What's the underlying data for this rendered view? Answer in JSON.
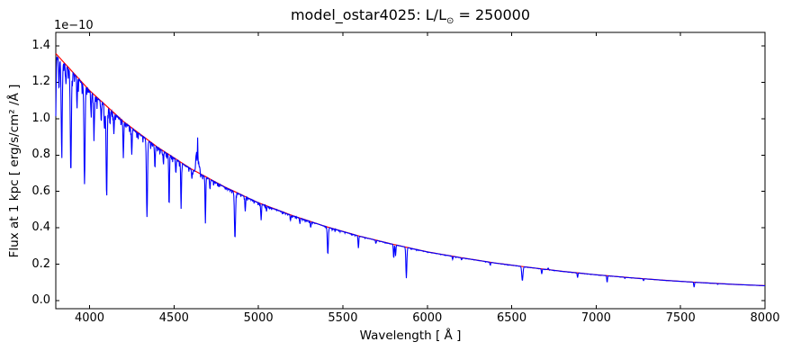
{
  "figure": {
    "background": "#ffffff"
  },
  "chart_data": {
    "type": "line",
    "title": "model_ostar4025: L/L⊙ = 250000",
    "title_parts": {
      "prefix": "model_ostar4025: L/L",
      "sun_symbol": "⊙",
      "suffix": " = 250000"
    },
    "xlabel": "Wavelength [ Å ]",
    "ylabel": "Flux at 1 kpc [ erg/s/cm² /Å ]",
    "y_scale_label": "1e−10",
    "xlim": [
      3800,
      8000
    ],
    "ylim": [
      -0.0445,
      1.4745
    ],
    "x_ticks": [
      "4000",
      "4500",
      "5000",
      "5500",
      "6000",
      "6500",
      "7000",
      "7500",
      "8000"
    ],
    "y_ticks": [
      "0.0",
      "0.2",
      "0.4",
      "0.6",
      "0.8",
      "1.0",
      "1.2",
      "1.4"
    ],
    "grid": false,
    "legend": null,
    "flux_unit_scale": "1e-10 erg/s/cm2/A",
    "series": [
      {
        "name": "continuum_fit",
        "color": "#ff0000",
        "style": "smooth"
      },
      {
        "name": "spectrum",
        "color": "#0000ff",
        "style": "continuum_with_lines"
      }
    ],
    "continuum_points": [
      [
        3800,
        1.358
      ],
      [
        4000,
        1.155
      ],
      [
        4200,
        0.985
      ],
      [
        4400,
        0.845
      ],
      [
        4600,
        0.725
      ],
      [
        4800,
        0.625
      ],
      [
        5000,
        0.538
      ],
      [
        5200,
        0.468
      ],
      [
        5400,
        0.407
      ],
      [
        5600,
        0.354
      ],
      [
        5800,
        0.309
      ],
      [
        6000,
        0.268
      ],
      [
        6200,
        0.236
      ],
      [
        6400,
        0.207
      ],
      [
        6600,
        0.183
      ],
      [
        6800,
        0.161
      ],
      [
        7000,
        0.142
      ],
      [
        7200,
        0.126
      ],
      [
        7400,
        0.112
      ],
      [
        7600,
        0.1
      ],
      [
        7800,
        0.09
      ],
      [
        8000,
        0.082
      ]
    ],
    "absorption_lines": [
      {
        "wavelength": 3798,
        "depth": 0.3,
        "sigma": 4.5
      },
      {
        "wavelength": 3819,
        "depth": 0.13,
        "sigma": 3
      },
      {
        "wavelength": 3835,
        "depth": 0.36,
        "sigma": 4.5
      },
      {
        "wavelength": 3860,
        "depth": 0.08,
        "sigma": 3
      },
      {
        "wavelength": 3889,
        "depth": 0.44,
        "sigma": 4.5
      },
      {
        "wavelength": 3926,
        "depth": 0.1,
        "sigma": 3
      },
      {
        "wavelength": 3970,
        "depth": 0.46,
        "sigma": 4.5
      },
      {
        "wavelength": 4009,
        "depth": 0.1,
        "sigma": 3
      },
      {
        "wavelength": 4026,
        "depth": 0.22,
        "sigma": 3
      },
      {
        "wavelength": 4069,
        "depth": 0.1,
        "sigma": 3
      },
      {
        "wavelength": 4089,
        "depth": 0.13,
        "sigma": 3
      },
      {
        "wavelength": 4101,
        "depth": 0.45,
        "sigma": 4.5
      },
      {
        "wavelength": 4121,
        "depth": 0.08,
        "sigma": 3
      },
      {
        "wavelength": 4144,
        "depth": 0.11,
        "sigma": 3
      },
      {
        "wavelength": 4200,
        "depth": 0.2,
        "sigma": 3
      },
      {
        "wavelength": 4250,
        "depth": 0.15,
        "sigma": 3
      },
      {
        "wavelength": 4340,
        "depth": 0.48,
        "sigma": 4.5
      },
      {
        "wavelength": 4387,
        "depth": 0.15,
        "sigma": 3
      },
      {
        "wavelength": 4437,
        "depth": 0.07,
        "sigma": 3
      },
      {
        "wavelength": 4471,
        "depth": 0.36,
        "sigma": 3
      },
      {
        "wavelength": 4511,
        "depth": 0.1,
        "sigma": 3
      },
      {
        "wavelength": 4542,
        "depth": 0.33,
        "sigma": 3
      },
      {
        "wavelength": 4606,
        "depth": 0.07,
        "sigma": 3
      },
      {
        "wavelength": 4686,
        "depth": 0.36,
        "sigma": 3
      },
      {
        "wavelength": 4713,
        "depth": 0.08,
        "sigma": 3
      },
      {
        "wavelength": 4861,
        "depth": 0.43,
        "sigma": 4.5
      },
      {
        "wavelength": 4922,
        "depth": 0.14,
        "sigma": 3
      },
      {
        "wavelength": 5016,
        "depth": 0.17,
        "sigma": 3
      },
      {
        "wavelength": 5048,
        "depth": 0.05,
        "sigma": 3
      },
      {
        "wavelength": 5190,
        "depth": 0.06,
        "sigma": 3
      },
      {
        "wavelength": 5245,
        "depth": 0.05,
        "sigma": 3
      },
      {
        "wavelength": 5310,
        "depth": 0.07,
        "sigma": 3
      },
      {
        "wavelength": 5411,
        "depth": 0.37,
        "sigma": 4
      },
      {
        "wavelength": 5592,
        "depth": 0.19,
        "sigma": 3
      },
      {
        "wavelength": 5696,
        "depth": 0.05,
        "sigma": 3
      },
      {
        "wavelength": 5801,
        "depth": 0.24,
        "sigma": 3
      },
      {
        "wavelength": 5812,
        "depth": 0.2,
        "sigma": 3
      },
      {
        "wavelength": 5876,
        "depth": 0.57,
        "sigma": 4
      },
      {
        "wavelength": 6150,
        "depth": 0.07,
        "sigma": 3
      },
      {
        "wavelength": 6203,
        "depth": 0.05,
        "sigma": 3
      },
      {
        "wavelength": 6373,
        "depth": 0.07,
        "sigma": 3
      },
      {
        "wavelength": 6563,
        "depth": 0.41,
        "sigma": 5
      },
      {
        "wavelength": 6678,
        "depth": 0.16,
        "sigma": 3
      },
      {
        "wavelength": 6890,
        "depth": 0.17,
        "sigma": 3
      },
      {
        "wavelength": 7065,
        "depth": 0.27,
        "sigma": 3
      },
      {
        "wavelength": 7170,
        "depth": 0.05,
        "sigma": 3
      },
      {
        "wavelength": 7281,
        "depth": 0.09,
        "sigma": 3
      },
      {
        "wavelength": 7580,
        "depth": 0.27,
        "sigma": 3
      },
      {
        "wavelength": 7720,
        "depth": 0.05,
        "sigma": 3
      }
    ],
    "emission_lines": [
      {
        "wavelength": 4630,
        "peak": 0.1,
        "sigma": 4
      },
      {
        "wavelength": 4634,
        "peak": 0.13,
        "sigma": 3
      },
      {
        "wavelength": 4640,
        "peak": 0.27,
        "sigma": 2.2
      },
      {
        "wavelength": 4646,
        "peak": 0.09,
        "sigma": 3
      },
      {
        "wavelength": 4652,
        "peak": 0.06,
        "sigma": 3
      },
      {
        "wavelength": 6716,
        "peak": 0.05,
        "sigma": 4
      }
    ],
    "noise": {
      "amplitude_blue_end": 0.035,
      "decay_scale": 1300,
      "floor": 0.004
    }
  }
}
